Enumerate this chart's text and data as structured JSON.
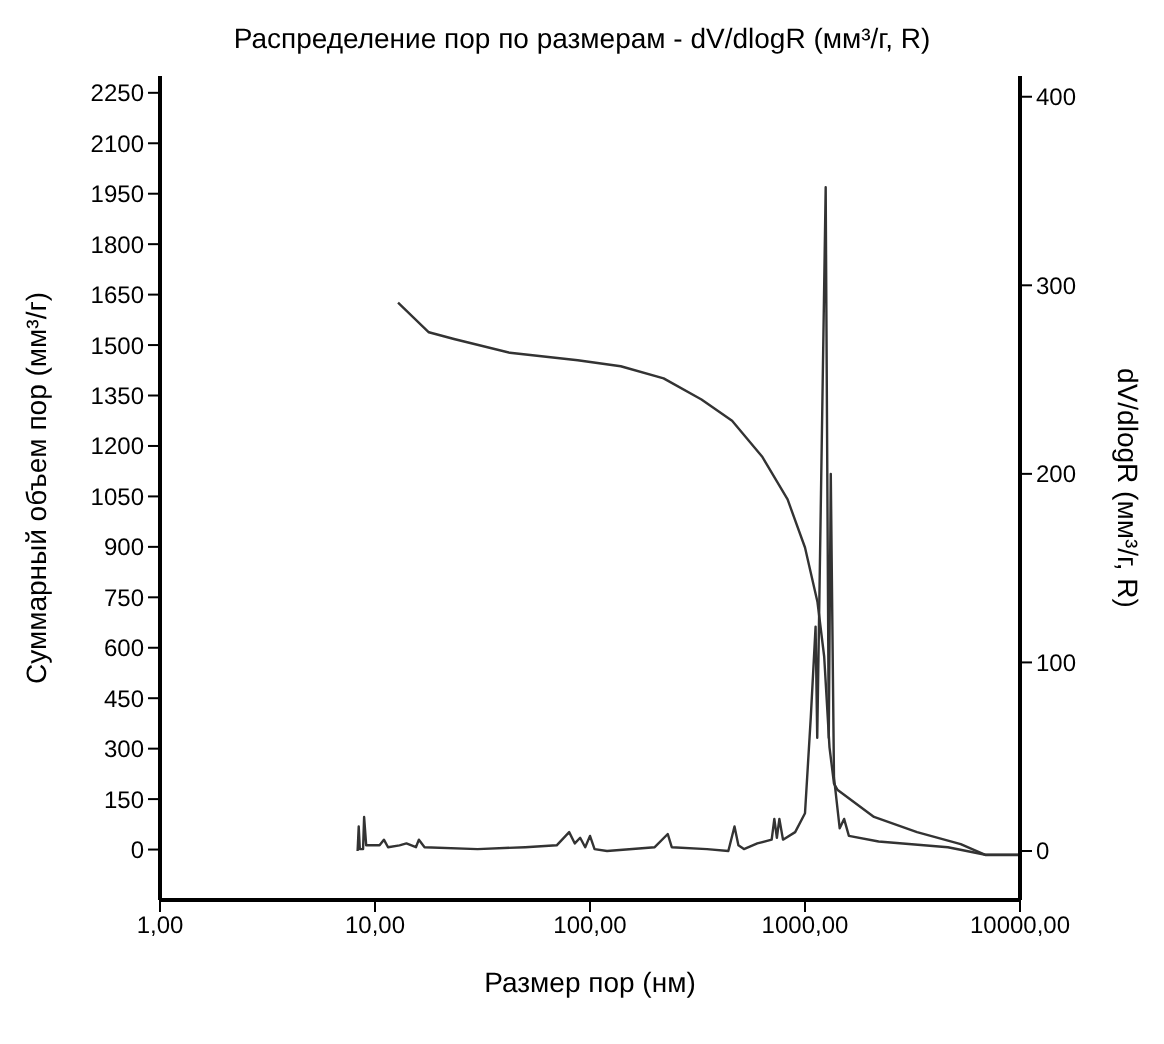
{
  "chart_data": {
    "type": "line",
    "title": "Распределение пор по размерам - dV/dlogR (мм³/г, R)",
    "xlabel": "Размер пор (нм)",
    "ylabel": "Суммарный объем пор (мм³/г)",
    "y2label": "dV/dlogR (мм³/г, R)",
    "log": "x",
    "grid": false,
    "legend": false,
    "marker": "none",
    "line_style": "solid",
    "xlim": [
      1,
      10000
    ],
    "xticks": [
      {
        "value": 1,
        "label": "1,00"
      },
      {
        "value": 10,
        "label": "10,00"
      },
      {
        "value": 100,
        "label": "100,00"
      },
      {
        "value": 1000,
        "label": "1000,00"
      },
      {
        "value": 10000,
        "label": "10000,00"
      }
    ],
    "ylim": [
      -150,
      2300
    ],
    "yticks": [
      0,
      150,
      300,
      450,
      600,
      750,
      900,
      1050,
      1200,
      1350,
      1500,
      1650,
      1800,
      1950,
      2100,
      2250
    ],
    "y2lim": [
      -26,
      411
    ],
    "y2ticks": [
      0,
      100,
      200,
      300,
      400
    ],
    "series": [
      {
        "color": "#333333",
        "x": [
          12.8,
          17.8,
          23.3,
          42.4,
          87.7,
          139,
          220,
          330,
          458,
          634,
          830,
          1000,
          1143,
          1228,
          1300,
          1364,
          1414,
          2094,
          3320,
          5300,
          6900,
          10000
        ],
        "values": [
          1626,
          1538,
          1518,
          1477,
          1455,
          1437,
          1401,
          1338,
          1275,
          1167,
          1041,
          898,
          736,
          574,
          304,
          196,
          178,
          97,
          52,
          16,
          -16,
          -16
        ]
      },
      {
        "color": "#333333",
        "axis": "y2",
        "x": [
          8.3,
          8.4,
          8.5,
          8.8,
          8.9,
          9.1,
          10.5,
          11,
          11.5,
          13,
          14,
          15.5,
          16,
          17,
          30,
          50,
          70,
          80,
          85,
          90,
          95,
          100,
          105,
          120,
          200,
          230,
          240,
          350,
          440,
          470,
          490,
          520,
          600,
          700,
          720,
          740,
          760,
          790,
          900,
          1000,
          1064,
          1120,
          1140,
          1248,
          1290,
          1318,
          1364,
          1450,
          1520,
          1600,
          2200,
          4620,
          6900,
          10000
        ],
        "values": [
          0,
          13,
          1,
          1,
          18,
          3,
          3,
          6,
          2,
          3,
          4,
          2,
          6,
          2,
          1,
          2,
          3,
          10,
          4,
          7,
          2,
          8,
          1,
          0,
          2,
          9,
          2,
          1,
          0,
          13,
          3,
          1,
          4,
          6,
          17,
          7,
          17,
          6,
          10,
          20,
          71,
          119,
          60,
          352,
          60,
          200,
          39,
          12,
          17,
          8,
          5,
          2,
          -2,
          -2
        ]
      }
    ]
  }
}
